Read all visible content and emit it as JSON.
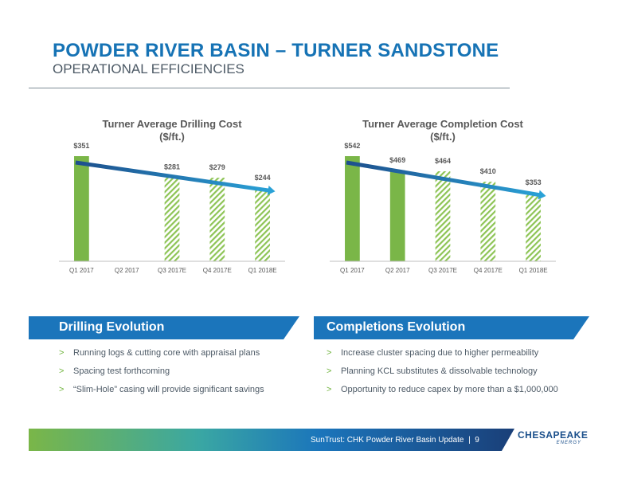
{
  "header": {
    "title": "POWDER RIVER BASIN – TURNER SANDSTONE",
    "subtitle": "OPERATIONAL EFFICIENCIES"
  },
  "chart_data": [
    {
      "type": "bar",
      "title_lines": [
        "Turner Average Drilling Cost",
        "($/ft.)"
      ],
      "categories": [
        "Q1 2017",
        "Q2 2017",
        "Q3 2017E",
        "Q4 2017E",
        "Q1 2018E"
      ],
      "values": [
        351,
        null,
        281,
        279,
        244
      ],
      "labels": [
        "$351",
        "",
        "$281",
        "$279",
        "$244"
      ],
      "bar_style": [
        "solid",
        "none",
        "hatched",
        "hatched",
        "hatched"
      ],
      "trend_arrow": true,
      "colors": {
        "solid": "#7ab648",
        "hatch": "#8dc455",
        "arrow_start": "#1d4f8c",
        "arrow_end": "#2aa3d8"
      }
    },
    {
      "type": "bar",
      "title_lines": [
        "Turner Average Completion Cost",
        "($/ft.)"
      ],
      "categories": [
        "Q1 2017",
        "Q2 2017",
        "Q3 2017E",
        "Q4 2017E",
        "Q1 2018E"
      ],
      "values": [
        542,
        469,
        464,
        410,
        353
      ],
      "labels": [
        "$542",
        "$469",
        "$464",
        "$410",
        "$353"
      ],
      "bar_style": [
        "solid",
        "solid",
        "hatched",
        "hatched",
        "hatched"
      ],
      "trend_arrow": true,
      "colors": {
        "solid": "#7ab648",
        "hatch": "#8dc455",
        "arrow_start": "#1d4f8c",
        "arrow_end": "#2aa3d8"
      }
    }
  ],
  "drilling": {
    "heading": "Drilling Evolution",
    "bullet_marker": ">",
    "bullets": [
      "Running logs & cutting core with appraisal plans",
      "Spacing test forthcoming",
      "“Slim-Hole” casing will provide significant savings"
    ]
  },
  "completions": {
    "heading": "Completions Evolution",
    "bullet_marker": ">",
    "bullets": [
      "Increase cluster spacing due to higher permeability",
      "Planning KCL substitutes & dissolvable technology",
      "Opportunity to reduce capex by more than a $1,000,000"
    ]
  },
  "footer": {
    "text": "SunTrust: CHK Powder River Basin Update",
    "separator": "|",
    "page_number": "9"
  },
  "logo": {
    "name": "CHESAPEAKE",
    "tagline": "ENERGY"
  },
  "colors": {
    "title_blue": "#1673b5",
    "banner_blue": "#1b75bb",
    "green": "#7ab648",
    "navy": "#1a4f8b"
  }
}
